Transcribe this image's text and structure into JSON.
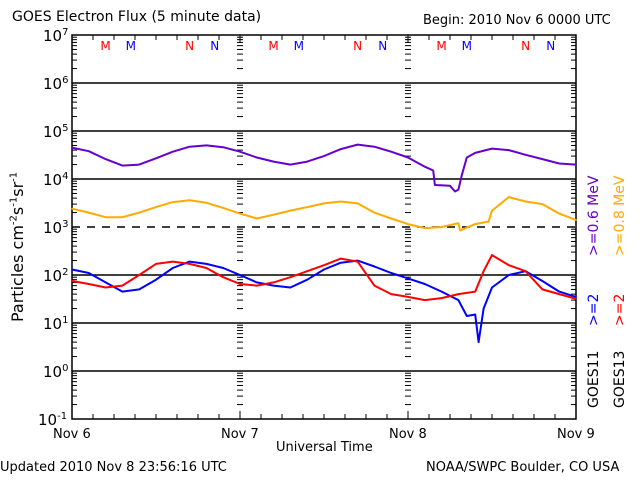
{
  "chart_data": {
    "type": "line",
    "title": "GOES Electron Flux (5 minute data)",
    "begin_label": "Begin: 2010 Nov 6 0000 UTC",
    "xlabel": "Universal Time",
    "ylabel": "Particles cm-2s-1sr-1",
    "ylabel_parts": {
      "base": "Particles cm",
      "exp1": "-2",
      "s": "s",
      "exp2": "-1",
      "sr": "sr",
      "exp3": "-1"
    },
    "yscale": "log",
    "ylim": [
      0.1,
      10000000
    ],
    "xlim_days": [
      0,
      3
    ],
    "x_tick_labels": [
      "Nov 6",
      "Nov 7",
      "Nov 8",
      "Nov 9"
    ],
    "y_tick_labels": [
      {
        "base": "10",
        "exp": "7"
      },
      {
        "base": "10",
        "exp": "6"
      },
      {
        "base": "10",
        "exp": "5"
      },
      {
        "base": "10",
        "exp": "4"
      },
      {
        "base": "10",
        "exp": "3"
      },
      {
        "base": "10",
        "exp": "2"
      },
      {
        "base": "10",
        "exp": "1"
      },
      {
        "base": "10",
        "exp": "0"
      },
      {
        "base": "10",
        "exp": "-1"
      }
    ],
    "threshold_line": 1000,
    "grid": true,
    "markers": [
      {
        "label": "M",
        "day": 0.2,
        "color": "#ff0000"
      },
      {
        "label": "M",
        "day": 0.35,
        "color": "#0000ff"
      },
      {
        "label": "N",
        "day": 0.7,
        "color": "#ff0000"
      },
      {
        "label": "N",
        "day": 0.85,
        "color": "#0000ff"
      },
      {
        "label": "M",
        "day": 1.2,
        "color": "#ff0000"
      },
      {
        "label": "M",
        "day": 1.35,
        "color": "#0000ff"
      },
      {
        "label": "N",
        "day": 1.7,
        "color": "#ff0000"
      },
      {
        "label": "N",
        "day": 1.85,
        "color": "#0000ff"
      },
      {
        "label": "M",
        "day": 2.2,
        "color": "#ff0000"
      },
      {
        "label": "M",
        "day": 2.35,
        "color": "#0000ff"
      },
      {
        "label": "N",
        "day": 2.7,
        "color": "#ff0000"
      },
      {
        "label": "N",
        "day": 2.85,
        "color": "#0000ff"
      }
    ],
    "series": [
      {
        "name": "GOES11 >=0.6 MeV",
        "color": "#6600cc",
        "x": [
          0,
          0.1,
          0.2,
          0.3,
          0.4,
          0.5,
          0.6,
          0.7,
          0.8,
          0.9,
          1.0,
          1.1,
          1.2,
          1.3,
          1.4,
          1.5,
          1.6,
          1.7,
          1.8,
          1.9,
          2.0,
          2.1,
          2.15,
          2.16,
          2.25,
          2.28,
          2.3,
          2.32,
          2.35,
          2.4,
          2.5,
          2.6,
          2.7,
          2.8,
          2.9,
          3.0
        ],
        "y": [
          45000,
          38000,
          26000,
          19000,
          20000,
          27000,
          37000,
          47000,
          50000,
          46000,
          37000,
          28000,
          23000,
          20000,
          23000,
          30000,
          42000,
          52000,
          47000,
          37000,
          28000,
          18000,
          15000,
          7500,
          7200,
          5500,
          6000,
          12000,
          28000,
          35000,
          43000,
          40000,
          32000,
          26000,
          21000,
          20000
        ]
      },
      {
        "name": "GOES13 >=0.8 MeV",
        "color": "#ffaa00",
        "x": [
          0,
          0.1,
          0.2,
          0.3,
          0.4,
          0.5,
          0.6,
          0.7,
          0.8,
          0.9,
          1.0,
          1.1,
          1.2,
          1.3,
          1.4,
          1.5,
          1.6,
          1.7,
          1.8,
          1.9,
          2.0,
          2.1,
          2.2,
          2.3,
          2.31,
          2.4,
          2.48,
          2.5,
          2.6,
          2.7,
          2.8,
          2.9,
          3.0
        ],
        "y": [
          2400,
          2000,
          1600,
          1600,
          2000,
          2600,
          3300,
          3600,
          3200,
          2500,
          1900,
          1500,
          1800,
          2200,
          2600,
          3100,
          3400,
          3100,
          2000,
          1500,
          1150,
          950,
          1000,
          1200,
          850,
          1150,
          1300,
          2200,
          4200,
          3400,
          3000,
          1900,
          1400
        ]
      },
      {
        "name": "GOES11 >=2 MeV",
        "color": "#0000ff",
        "x": [
          0,
          0.1,
          0.2,
          0.3,
          0.4,
          0.5,
          0.6,
          0.7,
          0.8,
          0.9,
          1.0,
          1.1,
          1.2,
          1.3,
          1.4,
          1.5,
          1.6,
          1.7,
          1.8,
          1.9,
          2.0,
          2.1,
          2.2,
          2.3,
          2.35,
          2.4,
          2.42,
          2.45,
          2.5,
          2.6,
          2.7,
          2.8,
          2.9,
          3.0
        ],
        "y": [
          130,
          110,
          70,
          45,
          50,
          80,
          140,
          190,
          170,
          140,
          100,
          70,
          60,
          55,
          80,
          130,
          180,
          200,
          150,
          110,
          85,
          65,
          45,
          30,
          14,
          15,
          4,
          20,
          55,
          100,
          120,
          75,
          45,
          35
        ]
      },
      {
        "name": "GOES13 >=2 MeV",
        "color": "#ff0000",
        "x": [
          0,
          0.1,
          0.2,
          0.3,
          0.4,
          0.5,
          0.6,
          0.7,
          0.8,
          0.9,
          1.0,
          1.1,
          1.2,
          1.3,
          1.4,
          1.5,
          1.6,
          1.7,
          1.8,
          1.9,
          2.0,
          2.1,
          2.2,
          2.3,
          2.4,
          2.45,
          2.5,
          2.6,
          2.7,
          2.8,
          2.9,
          3.0
        ],
        "y": [
          75,
          65,
          55,
          60,
          100,
          170,
          190,
          170,
          140,
          90,
          65,
          60,
          70,
          90,
          120,
          160,
          220,
          190,
          60,
          40,
          35,
          30,
          33,
          40,
          45,
          120,
          260,
          160,
          120,
          50,
          40,
          32
        ]
      }
    ],
    "legend": {
      "column1": [
        {
          "text": ">=0.6 MeV",
          "color": "#6600cc"
        },
        {
          "text": ">=2",
          "color": "#0000ff"
        },
        {
          "text": "GOES11",
          "color": "#000000"
        }
      ],
      "column2": [
        {
          "text": ">=0.8 MeV",
          "color": "#ffaa00"
        },
        {
          "text": ">=2",
          "color": "#ff0000"
        },
        {
          "text": "GOES13",
          "color": "#000000"
        }
      ],
      "placement": "right"
    }
  },
  "footer": {
    "updated": "Updated 2010 Nov  8 23:56:16 UTC",
    "source": "NOAA/SWPC Boulder, CO USA"
  }
}
